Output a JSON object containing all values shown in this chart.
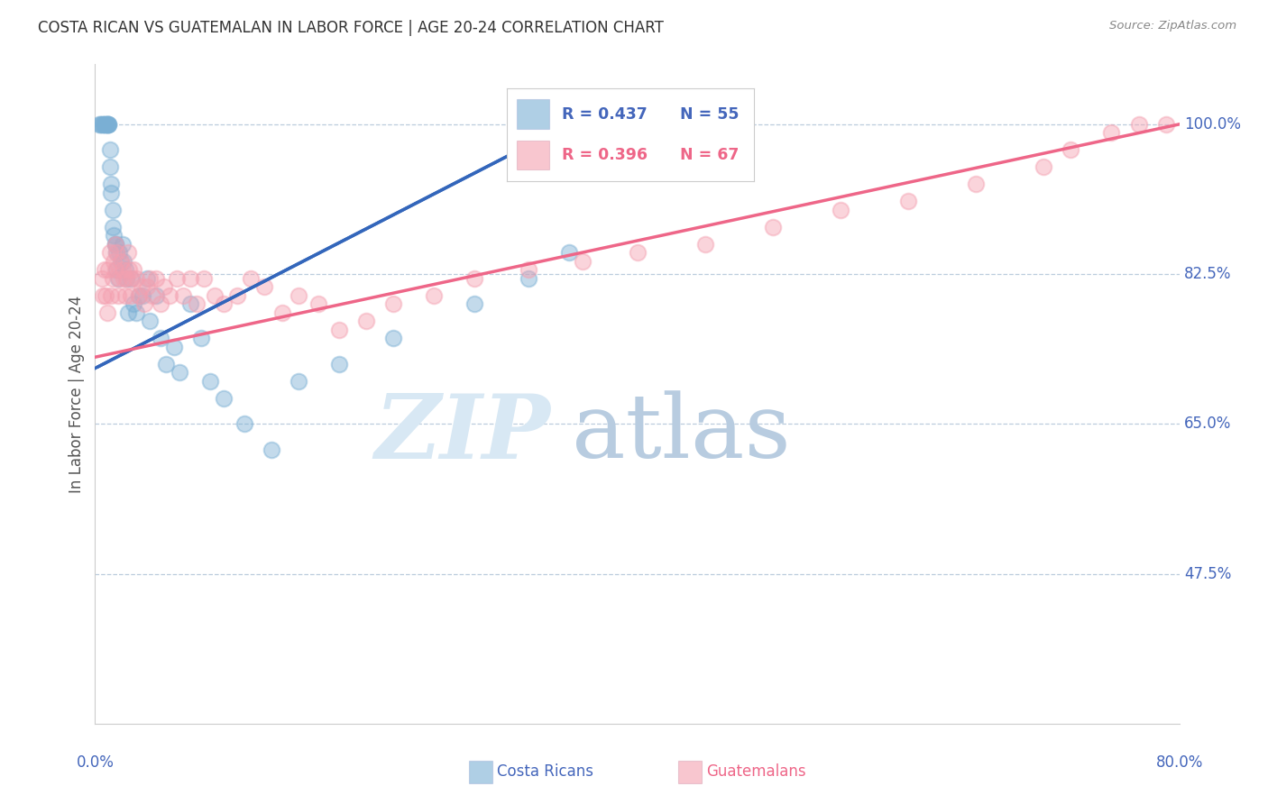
{
  "title": "COSTA RICAN VS GUATEMALAN IN LABOR FORCE | AGE 20-24 CORRELATION CHART",
  "source": "Source: ZipAtlas.com",
  "ylabel": "In Labor Force | Age 20-24",
  "yticks_pct": [
    47.5,
    65.0,
    82.5,
    100.0
  ],
  "xmin": 0.0,
  "xmax": 0.8,
  "ymin": 0.3,
  "ymax": 1.07,
  "blue_r": 0.437,
  "blue_n": 55,
  "pink_r": 0.396,
  "pink_n": 67,
  "blue_scatter_color": "#7AAFD4",
  "pink_scatter_color": "#F4A0B0",
  "blue_line_color": "#3366BB",
  "pink_line_color": "#EE6688",
  "axis_label_color": "#4466BB",
  "title_color": "#333333",
  "source_color": "#888888",
  "grid_color": "#BBCCDD",
  "costa_rican_x": [
    0.003,
    0.004,
    0.005,
    0.006,
    0.007,
    0.007,
    0.008,
    0.009,
    0.009,
    0.01,
    0.01,
    0.01,
    0.011,
    0.011,
    0.012,
    0.012,
    0.013,
    0.013,
    0.014,
    0.015,
    0.015,
    0.016,
    0.016,
    0.017,
    0.018,
    0.019,
    0.02,
    0.021,
    0.022,
    0.023,
    0.024,
    0.026,
    0.028,
    0.03,
    0.032,
    0.035,
    0.038,
    0.04,
    0.045,
    0.048,
    0.052,
    0.058,
    0.062,
    0.07,
    0.078,
    0.085,
    0.095,
    0.11,
    0.13,
    0.15,
    0.18,
    0.22,
    0.28,
    0.32,
    0.35
  ],
  "costa_rican_y": [
    1.0,
    1.0,
    1.0,
    1.0,
    1.0,
    1.0,
    1.0,
    1.0,
    1.0,
    1.0,
    1.0,
    1.0,
    0.97,
    0.95,
    0.92,
    0.93,
    0.9,
    0.88,
    0.87,
    0.86,
    0.86,
    0.85,
    0.83,
    0.82,
    0.85,
    0.84,
    0.86,
    0.84,
    0.83,
    0.82,
    0.78,
    0.82,
    0.79,
    0.78,
    0.8,
    0.8,
    0.82,
    0.77,
    0.8,
    0.75,
    0.72,
    0.74,
    0.71,
    0.79,
    0.75,
    0.7,
    0.68,
    0.65,
    0.62,
    0.7,
    0.72,
    0.75,
    0.79,
    0.82,
    0.85
  ],
  "guatemalan_x": [
    0.005,
    0.006,
    0.007,
    0.008,
    0.009,
    0.01,
    0.011,
    0.012,
    0.013,
    0.014,
    0.015,
    0.015,
    0.016,
    0.017,
    0.018,
    0.019,
    0.02,
    0.021,
    0.022,
    0.023,
    0.024,
    0.025,
    0.026,
    0.027,
    0.028,
    0.03,
    0.032,
    0.034,
    0.036,
    0.038,
    0.04,
    0.042,
    0.045,
    0.048,
    0.051,
    0.055,
    0.06,
    0.065,
    0.07,
    0.075,
    0.08,
    0.088,
    0.095,
    0.105,
    0.115,
    0.125,
    0.138,
    0.15,
    0.165,
    0.18,
    0.2,
    0.22,
    0.25,
    0.28,
    0.32,
    0.36,
    0.4,
    0.45,
    0.5,
    0.55,
    0.6,
    0.65,
    0.7,
    0.72,
    0.75,
    0.77,
    0.79
  ],
  "guatemalan_y": [
    0.82,
    0.8,
    0.83,
    0.8,
    0.78,
    0.83,
    0.85,
    0.8,
    0.82,
    0.84,
    0.86,
    0.83,
    0.85,
    0.8,
    0.82,
    0.84,
    0.83,
    0.82,
    0.8,
    0.82,
    0.85,
    0.83,
    0.8,
    0.82,
    0.83,
    0.82,
    0.8,
    0.81,
    0.79,
    0.81,
    0.82,
    0.8,
    0.82,
    0.79,
    0.81,
    0.8,
    0.82,
    0.8,
    0.82,
    0.79,
    0.82,
    0.8,
    0.79,
    0.8,
    0.82,
    0.81,
    0.78,
    0.8,
    0.79,
    0.76,
    0.77,
    0.79,
    0.8,
    0.82,
    0.83,
    0.84,
    0.85,
    0.86,
    0.88,
    0.9,
    0.91,
    0.93,
    0.95,
    0.97,
    0.99,
    1.0,
    1.0
  ]
}
